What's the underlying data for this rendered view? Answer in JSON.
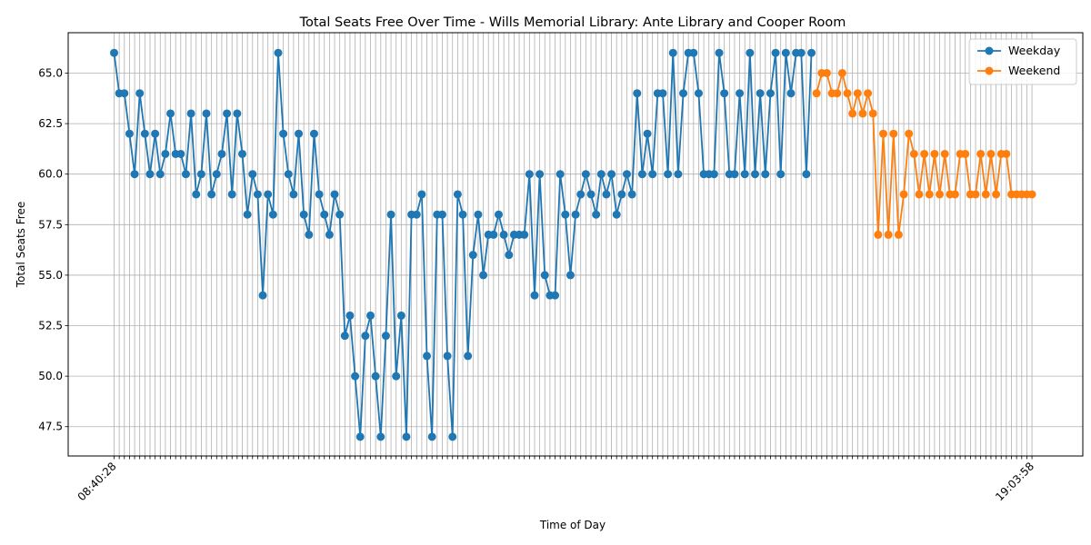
{
  "chart_data": {
    "type": "line",
    "title": "Total Seats Free Over Time - Wills Memorial Library: Ante Library and Cooper Room",
    "xlabel": "Time of Day",
    "ylabel": "Total Seats Free",
    "ylim": [
      46.05,
      67.0
    ],
    "yticks": [
      47.5,
      50.0,
      52.5,
      55.0,
      57.5,
      60.0,
      62.5,
      65.0
    ],
    "ytick_labels": [
      "47.5",
      "50.0",
      "52.5",
      "55.0",
      "57.5",
      "60.0",
      "62.5",
      "65.0"
    ],
    "grid": true,
    "legend": "top-right",
    "x_ticks_visible_sample": {
      "first": "08:40:28",
      "last": "19:03:58"
    },
    "series": [
      {
        "name": "Weekday",
        "color": "#1f77b4",
        "values": [
          66,
          64,
          64,
          62,
          60,
          64,
          62,
          60,
          62,
          60,
          61,
          63,
          61,
          61,
          60,
          63,
          59,
          60,
          63,
          59,
          60,
          61,
          63,
          59,
          63,
          61,
          58,
          60,
          59,
          54,
          59,
          58,
          66,
          62,
          60,
          59,
          62,
          58,
          57,
          62,
          59,
          58,
          57,
          59,
          58,
          52,
          53,
          50,
          47,
          52,
          53,
          50,
          47,
          52,
          58,
          50,
          53,
          47,
          58,
          58,
          59,
          51,
          47,
          58,
          58,
          51,
          47,
          59,
          58,
          51,
          56,
          58,
          55,
          57,
          57,
          58,
          57,
          56,
          57,
          57,
          57,
          60,
          54,
          60,
          55,
          54,
          54,
          60,
          58,
          55,
          58,
          59,
          60,
          59,
          58,
          60,
          59,
          60,
          58,
          59,
          60,
          59,
          64,
          60,
          62,
          60,
          64,
          64,
          60,
          66,
          60,
          64,
          66,
          66,
          64,
          60,
          60,
          60,
          66,
          64,
          60,
          60,
          64,
          60,
          66,
          60,
          64,
          60,
          64,
          66,
          60,
          66,
          64,
          66,
          66,
          60,
          66
        ]
      },
      {
        "name": "Weekend",
        "color": "#ff7f0e",
        "values": [
          64,
          65,
          65,
          64,
          64,
          65,
          64,
          63,
          64,
          63,
          64,
          63,
          57,
          62,
          57,
          62,
          57,
          59,
          62,
          61,
          59,
          61,
          59,
          61,
          59,
          61,
          59,
          59,
          61,
          61,
          59,
          59,
          61,
          59,
          61,
          59,
          61,
          61,
          59,
          59,
          59,
          59,
          59
        ]
      }
    ]
  }
}
